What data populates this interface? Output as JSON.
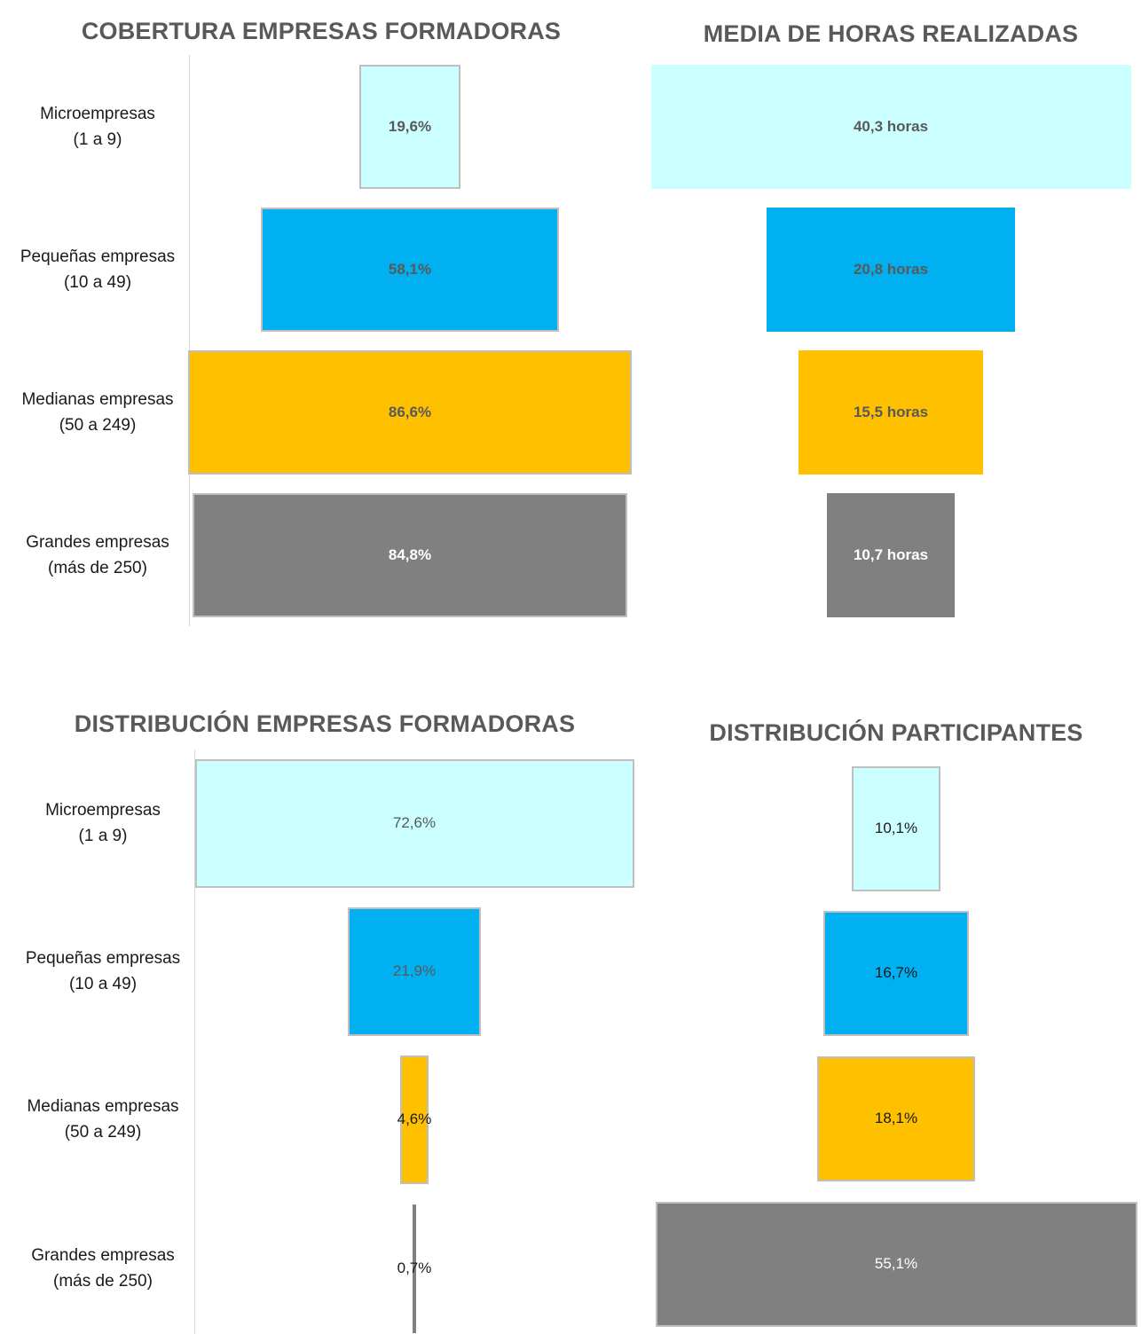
{
  "colors": {
    "micro": "#ccffff",
    "pequenas": "#00b0f0",
    "medianas": "#ffc000",
    "grandes": "#808080",
    "bar_border": "#bfbfbf"
  },
  "chart_data": [
    {
      "type": "bar",
      "orientation": "horizontal-funnel",
      "title": "COBERTURA EMPRESAS FORMADORAS",
      "categories": [
        "Microempresas\n(1 a 9)",
        "Pequeñas empresas\n(10 a 49)",
        "Medianas empresas\n(50 a 249)",
        "Grandes empresas\n(más de 250)"
      ],
      "values": [
        19.6,
        58.1,
        86.6,
        84.8
      ],
      "value_labels": [
        "19,6%",
        "58,1%",
        "86,6%",
        "84,8%"
      ],
      "unit": "%"
    },
    {
      "type": "bar",
      "orientation": "horizontal-funnel",
      "title": "MEDIA DE HORAS REALIZADAS",
      "categories": [
        "Microempresas\n(1 a 9)",
        "Pequeñas empresas\n(10 a 49)",
        "Medianas empresas\n(50 a 249)",
        "Grandes empresas\n(más de 250)"
      ],
      "values": [
        40.3,
        20.8,
        15.5,
        10.7
      ],
      "value_labels": [
        "40,3 horas",
        "20,8 horas",
        "15,5 horas",
        "10,7 horas"
      ],
      "unit": "horas"
    },
    {
      "type": "bar",
      "orientation": "horizontal-funnel",
      "title": "DISTRIBUCIÓN EMPRESAS FORMADORAS",
      "categories": [
        "Microempresas\n(1 a 9)",
        "Pequeñas empresas\n(10 a 49)",
        "Medianas empresas\n(50 a 249)",
        "Grandes empresas\n(más de 250)"
      ],
      "values": [
        72.6,
        21.9,
        4.6,
        0.7
      ],
      "value_labels": [
        "72,6%",
        "21,9%",
        "4,6%",
        "0,7%"
      ],
      "unit": "%"
    },
    {
      "type": "bar",
      "orientation": "horizontal-funnel",
      "title": "DISTRIBUCIÓN PARTICIPANTES",
      "categories": [
        "Microempresas\n(1 a 9)",
        "Pequeñas empresas\n(10 a 49)",
        "Medianas empresas\n(50 a 249)",
        "Grandes empresas\n(más de 250)"
      ],
      "values": [
        10.1,
        16.7,
        18.1,
        55.1
      ],
      "value_labels": [
        "10,1%",
        "16,7%",
        "18,1%",
        "55,1%"
      ],
      "unit": "%"
    }
  ]
}
